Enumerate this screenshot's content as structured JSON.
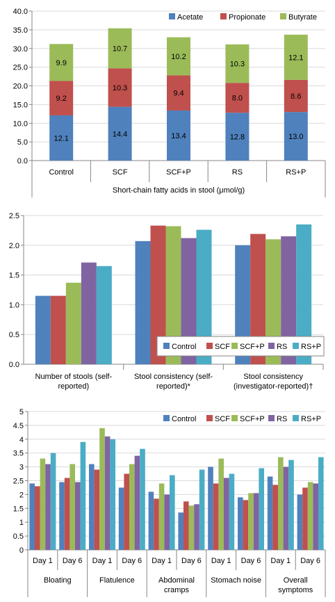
{
  "colors": {
    "Acetate": "#4f81bd",
    "Propionate": "#c0504d",
    "Butyrate": "#9bbb59",
    "Control": "#4f81bd",
    "SCF": "#c0504d",
    "SCF+P": "#9bbb59",
    "RS": "#8064a2",
    "RS+P": "#4bacc6",
    "grid": "#d9d9d9",
    "axis": "#868686"
  },
  "chart_data": [
    {
      "type": "bar",
      "stacked": true,
      "categories": [
        "Control",
        "SCF",
        "SCF+P",
        "RS",
        "RS+P"
      ],
      "series": [
        {
          "name": "Acetate",
          "values": [
            12.1,
            14.4,
            13.4,
            12.8,
            13.0
          ],
          "labels": [
            "12.1",
            "14.4",
            "13.4",
            "12.8",
            "13.0"
          ]
        },
        {
          "name": "Propionate",
          "values": [
            9.2,
            10.3,
            9.4,
            8.0,
            8.6
          ],
          "labels": [
            "9.2",
            "10.3",
            "9.4",
            "8.0",
            "8.6"
          ]
        },
        {
          "name": "Butyrate",
          "values": [
            9.9,
            10.7,
            10.2,
            10.3,
            12.1
          ],
          "labels": [
            "9.9",
            "10.7",
            "10.2",
            "10.3",
            "12.1"
          ]
        }
      ],
      "xlabel": "Short-chain fatty acids in stool (μmol/g)",
      "ylabel": "",
      "ylim": [
        0,
        40
      ],
      "yticks": [
        "0.0",
        "5.0",
        "10.0",
        "15.0",
        "20.0",
        "25.0",
        "30.0",
        "35.0",
        "40.0"
      ],
      "grid": true,
      "legend": "top-right"
    },
    {
      "type": "bar",
      "categories": [
        "Number of stools (self-reported)",
        "Stool consistency (self-reported)*",
        "Stool consistency (investigator-reported)†"
      ],
      "category_lines": [
        [
          "Number of stools (self-",
          "reported)"
        ],
        [
          "Stool consistency (self-",
          "reported)*"
        ],
        [
          "Stool consistency",
          "(investigator-reported)†"
        ]
      ],
      "series": [
        {
          "name": "Control",
          "values": [
            1.15,
            2.07,
            2.0
          ]
        },
        {
          "name": "SCF",
          "values": [
            1.15,
            2.33,
            2.19
          ]
        },
        {
          "name": "SCF+P",
          "values": [
            1.37,
            2.32,
            2.1
          ]
        },
        {
          "name": "RS",
          "values": [
            1.71,
            2.12,
            2.15
          ]
        },
        {
          "name": "RS+P",
          "values": [
            1.65,
            2.26,
            2.35
          ]
        }
      ],
      "xlabel": "",
      "ylabel": "",
      "ylim": [
        0,
        2.5
      ],
      "yticks": [
        "0.0",
        "0.5",
        "1.0",
        "1.5",
        "2.0",
        "2.5"
      ],
      "grid": true,
      "legend": "bottom-right"
    },
    {
      "type": "bar",
      "categories": [
        "Day 1",
        "Day 6",
        "Day 1",
        "Day 6",
        "Day 1",
        "Day 6",
        "Day 1",
        "Day 6",
        "Day 1",
        "Day 6"
      ],
      "groups": [
        {
          "lines": [
            "Bloating"
          ]
        },
        {
          "lines": [
            "Flatulence"
          ]
        },
        {
          "lines": [
            "Abdominal",
            "cramps"
          ]
        },
        {
          "lines": [
            "Stomach noise"
          ]
        },
        {
          "lines": [
            "Overall",
            "symptoms"
          ]
        }
      ],
      "series": [
        {
          "name": "Control",
          "values": [
            2.4,
            2.45,
            3.1,
            2.25,
            2.1,
            1.35,
            3.0,
            1.9,
            2.65,
            2.0
          ]
        },
        {
          "name": "SCF",
          "values": [
            2.3,
            2.6,
            2.9,
            2.75,
            1.85,
            1.75,
            2.4,
            1.8,
            2.35,
            2.25
          ]
        },
        {
          "name": "SCF+P",
          "values": [
            3.3,
            3.1,
            4.4,
            3.1,
            2.4,
            1.6,
            3.3,
            2.05,
            3.35,
            2.45
          ]
        },
        {
          "name": "RS",
          "values": [
            3.1,
            2.45,
            4.1,
            3.4,
            2.0,
            1.65,
            2.6,
            2.05,
            3.0,
            2.4
          ]
        },
        {
          "name": "RS+P",
          "values": [
            3.5,
            3.9,
            4.0,
            3.65,
            2.7,
            2.9,
            2.75,
            2.95,
            3.25,
            3.35
          ]
        }
      ],
      "xlabel": "",
      "ylabel": "",
      "ylim": [
        0,
        5
      ],
      "yticks": [
        "0",
        "0.5",
        "1",
        "1.5",
        "2",
        "2.5",
        "3",
        "3.5",
        "4",
        "4.5",
        "5"
      ],
      "grid": true,
      "legend": "top-right"
    }
  ]
}
